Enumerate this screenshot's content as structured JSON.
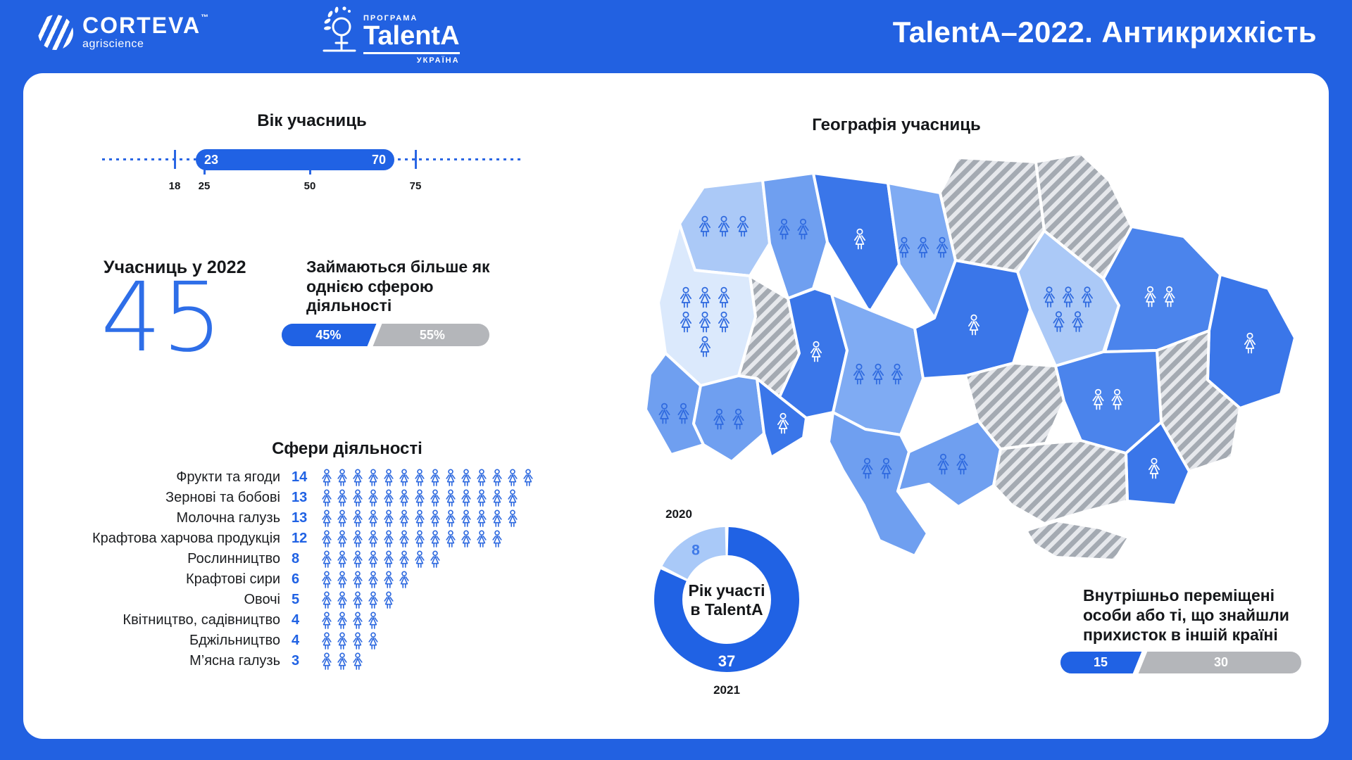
{
  "header": {
    "brand": {
      "name": "CORTEVA",
      "tm": "™",
      "sub": "agriscience"
    },
    "program": {
      "top": "ПРОГРАМА",
      "name": "TalentA",
      "bottom": "УКРАЇНА"
    },
    "title": "TalentA–2022. Антикрихкість"
  },
  "age": {
    "title": "Вік учасниць",
    "scale_min": 18,
    "scale_max": 75,
    "range_min": "23",
    "range_max": "70",
    "ticks": [
      18,
      25,
      50,
      75
    ],
    "subticks": [
      25,
      50
    ]
  },
  "participants": {
    "label": "Учасниць у 2022",
    "value": "45"
  },
  "multi_sphere": {
    "label": "Займаються більше як однією сферою діяльності",
    "yes_label": "45%",
    "no_label": "55%",
    "yes_value": 45,
    "no_value": 55
  },
  "spheres": {
    "title": "Сфери діяльності",
    "items": [
      {
        "label": "Фрукти та ягоди",
        "count": 14
      },
      {
        "label": "Зернові та бобові",
        "count": 13
      },
      {
        "label": "Молочна галузь",
        "count": 13
      },
      {
        "label": "Крафтова харчова продукція",
        "count": 12
      },
      {
        "label": "Рослинництво",
        "count": 8
      },
      {
        "label": "Крафтові сири",
        "count": 6
      },
      {
        "label": "Овочі",
        "count": 5
      },
      {
        "label": "Квітництво, садівництво",
        "count": 4
      },
      {
        "label": "Бджільництво",
        "count": 4
      },
      {
        "label": "М’ясна галузь",
        "count": 3
      }
    ]
  },
  "donut": {
    "center_line1": "Рік участі",
    "center_line2": "в TalentA",
    "slices": [
      {
        "year": "2021",
        "value": 37,
        "color": "#2062e4",
        "label_color": "#ffffff"
      },
      {
        "year": "2020",
        "value": 8,
        "color": "#a9c9f8",
        "label_color": "#3f7ae8"
      }
    ]
  },
  "map": {
    "title": "Географія учасниць",
    "regions": [
      {
        "id": "volyn",
        "shade": "light",
        "icons": 3
      },
      {
        "id": "rivne",
        "shade": "medium",
        "icons": 2
      },
      {
        "id": "zhytomyr",
        "shade": "dark",
        "icons": 1
      },
      {
        "id": "kyiv",
        "shade": "mediumLight",
        "icons": 3
      },
      {
        "id": "chernihiv",
        "shade": "hatched",
        "icons": 0
      },
      {
        "id": "sumy",
        "shade": "hatched",
        "icons": 0
      },
      {
        "id": "lviv",
        "shade": "lightest",
        "icons": 7
      },
      {
        "id": "ternopil",
        "shade": "hatched",
        "icons": 0
      },
      {
        "id": "khmel",
        "shade": "dark",
        "icons": 1
      },
      {
        "id": "vinn",
        "shade": "mediumLight",
        "icons": 3
      },
      {
        "id": "cherkasy",
        "shade": "dark",
        "icons": 1
      },
      {
        "id": "poltava",
        "shade": "light",
        "icons": 5
      },
      {
        "id": "kharkiv",
        "shade": "darkMed",
        "icons": 2
      },
      {
        "id": "luhansk",
        "shade": "dark",
        "icons": 1
      },
      {
        "id": "donetsk",
        "shade": "hatched",
        "icons": 0
      },
      {
        "id": "zakarpattia",
        "shade": "medium",
        "icons": 2
      },
      {
        "id": "ivanofrankivsk",
        "shade": "medium",
        "icons": 2
      },
      {
        "id": "chernivtsi",
        "shade": "dark",
        "icons": 1
      },
      {
        "id": "odesa",
        "shade": "medium",
        "icons": 2
      },
      {
        "id": "kirovohrad",
        "shade": "hatched",
        "icons": 0
      },
      {
        "id": "mykolaiv",
        "shade": "medium",
        "icons": 2
      },
      {
        "id": "dnipro",
        "shade": "darkMed",
        "icons": 2
      },
      {
        "id": "zaporizhzhia",
        "shade": "dark",
        "icons": 1
      },
      {
        "id": "kherson",
        "shade": "hatched",
        "icons": 0
      },
      {
        "id": "crimea",
        "shade": "hatched",
        "icons": 0
      }
    ]
  },
  "displaced": {
    "label": "Внутрішньо переміщені особи або ті, що знайшли прихисток в іншій країні",
    "value_label": "15",
    "rest_label": "30",
    "value": 15,
    "rest": 30
  },
  "colors": {
    "background": "#2261e1",
    "accent": "#2062e4",
    "bar_gray": "#b4b6ba",
    "big_number": "#2e6ee8",
    "donut_dark": "#2062e4",
    "donut_light": "#a9c9f8",
    "map_lightest": "#dbe9fc",
    "map_light": "#abc9f7",
    "map_mediumLight": "#7fabf3",
    "map_medium": "#6f9ff0",
    "map_darkMed": "#4b84ec",
    "map_dark": "#3a76e9",
    "hatch_stripe": "#a4aab2",
    "hatch_bg": "#e6e8ec",
    "icon_blue": "#2f6adf",
    "icon_white": "#ffffff"
  },
  "chart_data": [
    {
      "type": "range",
      "title": "Вік учасниць",
      "axis": [
        18,
        75
      ],
      "range": [
        23,
        70
      ],
      "ticks": [
        18,
        25,
        50,
        75
      ]
    },
    {
      "type": "bar",
      "title": "Займаються більше як однією сферою діяльності",
      "categories": [
        "45%",
        "55%"
      ],
      "values": [
        45,
        55
      ],
      "unit": "%"
    },
    {
      "type": "bar",
      "title": "Сфери діяльності",
      "style": "pictogram",
      "categories": [
        "Фрукти та ягоди",
        "Зернові та бобові",
        "Молочна галузь",
        "Крафтова харчова продукція",
        "Рослинництво",
        "Крафтові сири",
        "Овочі",
        "Квітництво, садівництво",
        "Бджільництво",
        "М’ясна галузь"
      ],
      "values": [
        14,
        13,
        13,
        12,
        8,
        6,
        5,
        4,
        4,
        3
      ]
    },
    {
      "type": "pie",
      "title": "Рік участі в TalentA",
      "categories": [
        "2021",
        "2020"
      ],
      "values": [
        37,
        8
      ]
    },
    {
      "type": "bar",
      "title": "Внутрішньо переміщені особи або ті, що знайшли прихисток в іншій країні",
      "categories": [
        "15",
        "30"
      ],
      "values": [
        15,
        30
      ]
    }
  ]
}
